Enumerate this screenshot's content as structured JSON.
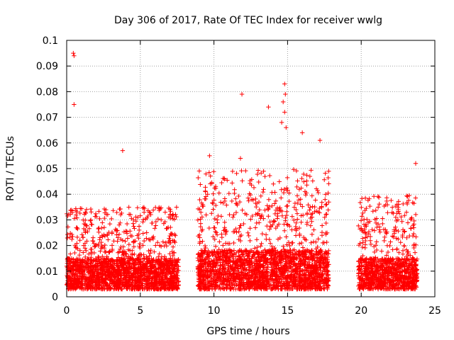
{
  "chart_data": {
    "type": "scatter",
    "title": "Day 306 of 2017, Rate Of TEC Index for receiver wwlg",
    "xlabel": "GPS time / hours",
    "ylabel": "ROTI / TECUs",
    "xlim": [
      0,
      25
    ],
    "ylim": [
      0,
      0.1
    ],
    "x_ticks": [
      0,
      5,
      10,
      15,
      20,
      25
    ],
    "x_tick_labels": [
      "0",
      "5",
      "10",
      "15",
      "20",
      "25"
    ],
    "y_ticks": [
      0,
      0.01,
      0.02,
      0.03,
      0.04,
      0.05,
      0.06,
      0.07,
      0.08,
      0.09,
      0.1
    ],
    "y_tick_labels": [
      "0",
      "0.01",
      "0.02",
      "0.03",
      "0.04",
      "0.05",
      "0.06",
      "0.07",
      "0.08",
      "0.09",
      "0.1"
    ],
    "grid": true,
    "marker": "+",
    "marker_color": "#ff0000",
    "data_segments": [
      {
        "x_start": 0.0,
        "x_end": 7.6,
        "typical_roti": 0.012,
        "max_common_roti": 0.035
      },
      {
        "x_start": 8.9,
        "x_end": 17.8,
        "typical_roti": 0.015,
        "max_common_roti": 0.05
      },
      {
        "x_start": 19.8,
        "x_end": 23.8,
        "typical_roti": 0.012,
        "max_common_roti": 0.04
      }
    ],
    "notable_points": [
      {
        "x": 0.45,
        "y": 0.095
      },
      {
        "x": 0.5,
        "y": 0.094
      },
      {
        "x": 0.5,
        "y": 0.075
      },
      {
        "x": 11.9,
        "y": 0.079
      },
      {
        "x": 14.8,
        "y": 0.083
      },
      {
        "x": 14.85,
        "y": 0.079
      },
      {
        "x": 14.7,
        "y": 0.076
      },
      {
        "x": 13.7,
        "y": 0.074
      },
      {
        "x": 14.8,
        "y": 0.072
      },
      {
        "x": 14.6,
        "y": 0.068
      },
      {
        "x": 14.9,
        "y": 0.066
      },
      {
        "x": 16.0,
        "y": 0.064
      },
      {
        "x": 17.2,
        "y": 0.061
      },
      {
        "x": 3.8,
        "y": 0.057
      },
      {
        "x": 9.7,
        "y": 0.055
      },
      {
        "x": 11.8,
        "y": 0.054
      },
      {
        "x": 23.7,
        "y": 0.052
      }
    ]
  }
}
